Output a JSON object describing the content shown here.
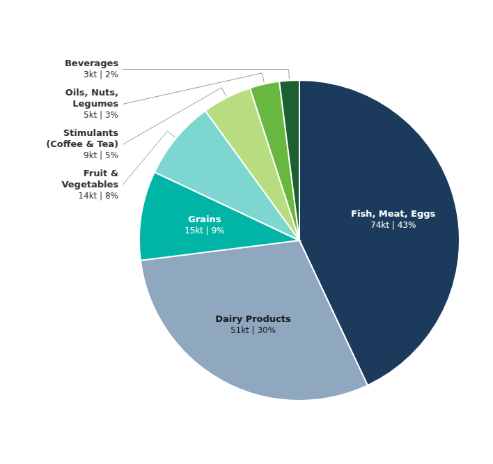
{
  "chart_data": {
    "type": "pie",
    "categories": [
      "Fish, Meat, Eggs",
      "Dairy Products",
      "Grains",
      "Fruit &\nVegetables",
      "Stimulants\n(Coffee & Tea)",
      "Oils, Nuts,\nLegumes",
      "Beverages"
    ],
    "values": [
      43,
      30,
      9,
      8,
      5,
      3,
      2
    ],
    "value_labels": [
      "74kt | 43%",
      "51kt | 30%",
      "15kt | 9%",
      "14kt | 8%",
      "9kt | 5%",
      "5kt | 3%",
      "3kt | 2%"
    ],
    "colors": [
      "#1b3a5c",
      "#8fa8c0",
      "#00b5a5",
      "#7dd6d0",
      "#b8dc80",
      "#68b840",
      "#1a6030"
    ],
    "data_labels": true
  }
}
